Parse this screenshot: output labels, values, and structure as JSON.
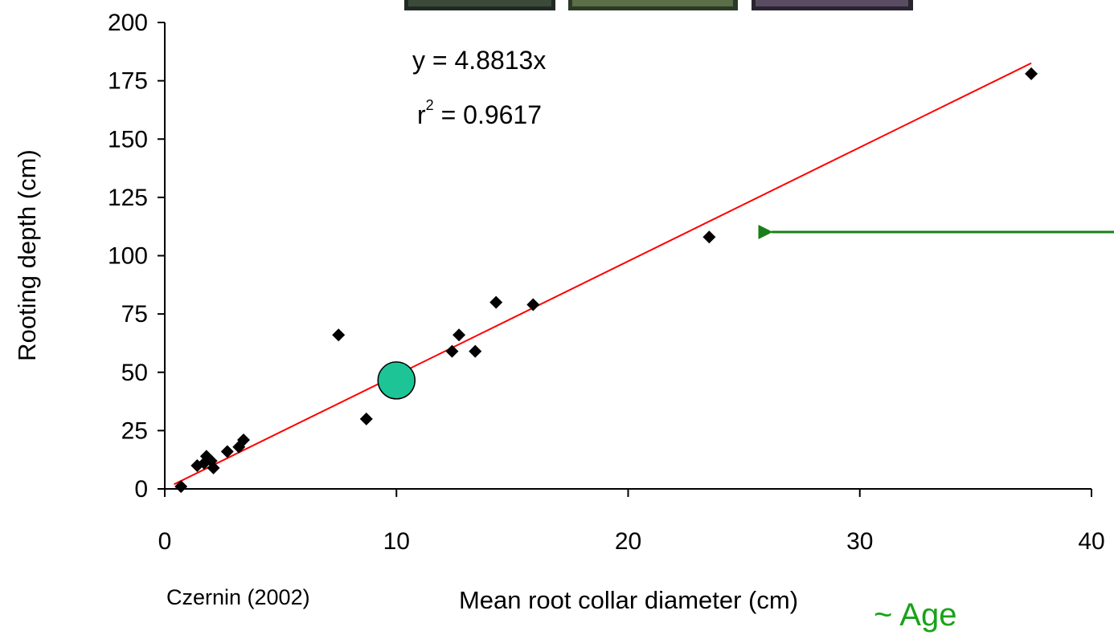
{
  "chart_data": {
    "type": "scatter",
    "xlabel": "Mean root collar diameter (cm)",
    "ylabel": "Rooting depth (cm)",
    "xlim": [
      0,
      40
    ],
    "ylim": [
      0,
      200
    ],
    "x_ticks": [
      0,
      10,
      20,
      30,
      40
    ],
    "y_ticks": [
      0,
      25,
      50,
      75,
      100,
      125,
      150,
      175,
      200
    ],
    "grid": false,
    "series": [
      {
        "points": [
          [
            0.7,
            1
          ],
          [
            1.4,
            10
          ],
          [
            1.7,
            11
          ],
          [
            1.8,
            14
          ],
          [
            2.0,
            12
          ],
          [
            2.1,
            9
          ],
          [
            2.7,
            16
          ],
          [
            3.2,
            18
          ],
          [
            3.4,
            21
          ],
          [
            7.5,
            66
          ],
          [
            8.7,
            30
          ],
          [
            12.4,
            59
          ],
          [
            12.7,
            66
          ],
          [
            13.4,
            59
          ],
          [
            14.3,
            80
          ],
          [
            15.9,
            79
          ],
          [
            23.5,
            108
          ],
          [
            37.4,
            178
          ]
        ],
        "marker": "diamond",
        "color": "#000000"
      }
    ],
    "highlight_point": {
      "x": 10,
      "y": 46.5,
      "color": "#1DC496"
    },
    "trendline": {
      "slope": 4.8813,
      "x_range": [
        0.4,
        37.4
      ],
      "color": "#ff0000"
    },
    "equation": "y = 4.8813x",
    "r_squared_prefix": "r",
    "r_squared_exponent": "2",
    "r_squared_value": " = 0.9617"
  },
  "annotations": {
    "source": "Czernin (2002)",
    "age": "~ Age",
    "age_color": "#18a318",
    "arrow_color": "#1a7f1a"
  }
}
